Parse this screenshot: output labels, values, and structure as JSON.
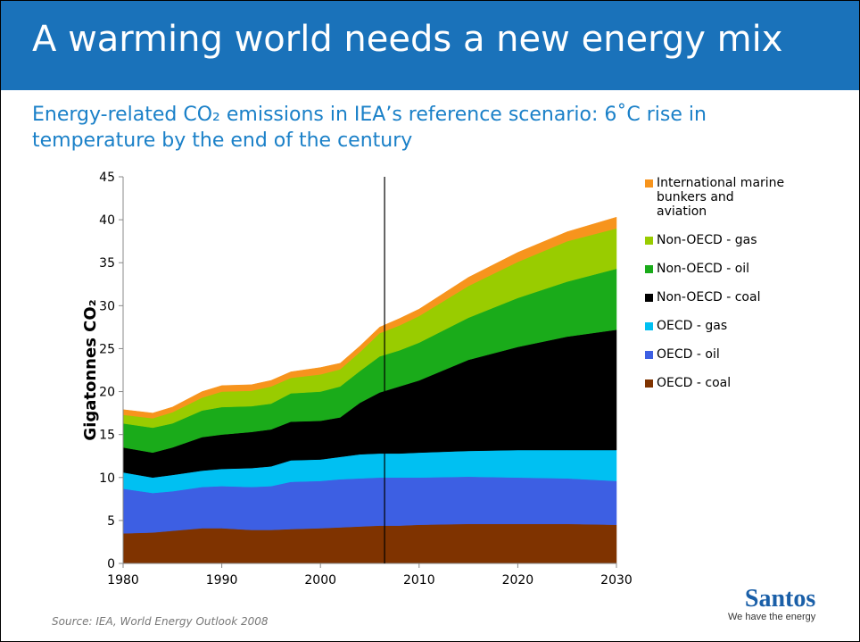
{
  "header": {
    "title": "A warming world needs a new energy mix"
  },
  "chart_data": {
    "type": "stacked_area",
    "subtitle": "Energy-related CO₂ emissions in IEA’s reference scenario: 6˚C rise in temperature by the end of the century",
    "y_label": "Gigatonnes CO₂",
    "x": [
      1980,
      1983,
      1985,
      1988,
      1990,
      1993,
      1995,
      1997,
      2000,
      2002,
      2004,
      2006,
      2008,
      2010,
      2015,
      2020,
      2025,
      2030
    ],
    "series": [
      {
        "name": "OECD - coal",
        "color": "#7f3300",
        "values": [
          3.5,
          3.6,
          3.8,
          4.1,
          4.1,
          3.9,
          3.9,
          4.0,
          4.1,
          4.2,
          4.3,
          4.4,
          4.4,
          4.5,
          4.6,
          4.6,
          4.6,
          4.5
        ]
      },
      {
        "name": "OECD - oil",
        "color": "#3d5fe3",
        "values": [
          5.2,
          4.6,
          4.6,
          4.8,
          4.9,
          5.0,
          5.1,
          5.5,
          5.5,
          5.6,
          5.6,
          5.6,
          5.6,
          5.5,
          5.5,
          5.4,
          5.3,
          5.1
        ]
      },
      {
        "name": "OECD - gas",
        "color": "#00c0f2",
        "values": [
          1.9,
          1.8,
          1.9,
          1.9,
          2.0,
          2.2,
          2.3,
          2.5,
          2.5,
          2.6,
          2.8,
          2.8,
          2.8,
          2.9,
          3.0,
          3.2,
          3.3,
          3.6
        ]
      },
      {
        "name": "Non-OECD - coal",
        "color": "#000000",
        "values": [
          2.9,
          2.9,
          3.2,
          3.9,
          4.0,
          4.2,
          4.3,
          4.5,
          4.5,
          4.6,
          6.0,
          7.1,
          7.8,
          8.4,
          10.6,
          12.0,
          13.2,
          14.0
        ]
      },
      {
        "name": "Non-OECD - oil",
        "color": "#1aab1a",
        "values": [
          2.8,
          2.9,
          2.8,
          3.1,
          3.2,
          3.0,
          3.0,
          3.3,
          3.4,
          3.6,
          3.7,
          4.2,
          4.2,
          4.4,
          4.9,
          5.7,
          6.4,
          7.1
        ]
      },
      {
        "name": "Non-OECD - gas",
        "color": "#99cc00",
        "values": [
          1.0,
          1.1,
          1.3,
          1.5,
          1.8,
          1.8,
          2.0,
          1.8,
          2.0,
          2.0,
          2.2,
          2.7,
          2.9,
          3.1,
          3.7,
          4.2,
          4.7,
          4.7
        ]
      },
      {
        "name": "International marine bunkers and aviation",
        "color": "#f7941d",
        "values": [
          0.6,
          0.6,
          0.6,
          0.7,
          0.7,
          0.7,
          0.7,
          0.7,
          0.8,
          0.7,
          0.7,
          0.7,
          0.8,
          0.8,
          1.0,
          1.1,
          1.1,
          1.3
        ]
      }
    ],
    "xlim": [
      1980,
      2030
    ],
    "xticks": [
      1980,
      1990,
      2000,
      2010,
      2020,
      2030
    ],
    "ylim": [
      0,
      45
    ],
    "yticks": [
      0,
      5,
      10,
      15,
      20,
      25,
      30,
      35,
      40,
      45
    ],
    "marker_x": 2006.5,
    "source": "Source: IEA, World Energy Outlook 2008"
  },
  "logo": {
    "name": "Santos",
    "tagline": "We have the energy"
  }
}
